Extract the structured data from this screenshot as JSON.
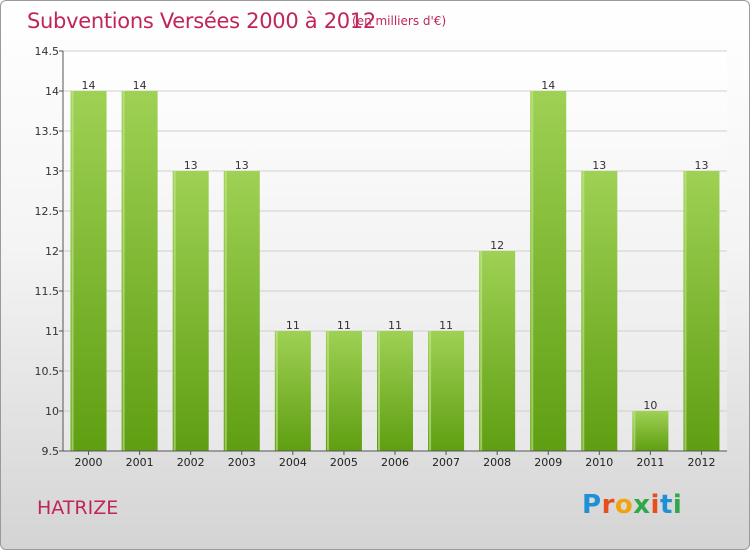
{
  "header": {
    "title": "Subventions Versées 2000 à 2012",
    "unit": "(en milliers d'€)"
  },
  "footer": {
    "commune": "HATRIZE",
    "logo_text": "Proxiti"
  },
  "colors": {
    "title": "#c0255a",
    "bar_top": "#9fd154",
    "bar_bottom": "#5f9e12",
    "logo": [
      "#1f8fd6",
      "#e84e1b",
      "#f2a20c",
      "#2ea84a",
      "#e84e1b",
      "#1f8fd6",
      "#2ea84a"
    ]
  },
  "chart_data": {
    "type": "bar",
    "categories": [
      "2000",
      "2001",
      "2002",
      "2003",
      "2004",
      "2005",
      "2006",
      "2007",
      "2008",
      "2009",
      "2010",
      "2011",
      "2012"
    ],
    "values": [
      14,
      14,
      13,
      13,
      11,
      11,
      11,
      11,
      12,
      14,
      13,
      10,
      13
    ],
    "data_labels": [
      "14",
      "14",
      "13",
      "13",
      "11",
      "11",
      "11",
      "11",
      "12",
      "14",
      "13",
      "10",
      "13"
    ],
    "yticks": [
      "9.5",
      "10",
      "10.5",
      "11",
      "11.5",
      "12",
      "12.5",
      "13",
      "13.5",
      "14",
      "14.5"
    ],
    "title": "Subventions Versées 2000 à 2012",
    "xlabel": "",
    "ylabel": "",
    "ylim": [
      9.5,
      14.5
    ],
    "grid": true,
    "legend": "none"
  }
}
